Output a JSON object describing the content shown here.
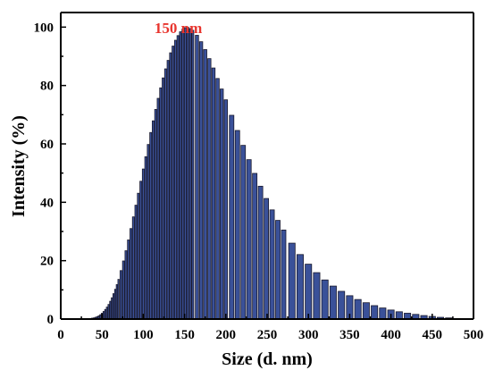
{
  "chart_data": {
    "type": "bar",
    "xlabel": "Size (d. nm)",
    "ylabel": "Intensity (%)",
    "xlim": [
      0,
      500
    ],
    "ylim": [
      0,
      105
    ],
    "x_ticks": [
      0,
      50,
      100,
      150,
      200,
      250,
      300,
      350,
      400,
      450,
      500
    ],
    "y_ticks": [
      0,
      20,
      40,
      60,
      80,
      100
    ],
    "grid": false,
    "annotation": {
      "text": "150 nm",
      "x": 150,
      "color": "#e8352e"
    },
    "bar_color": "#3a5199",
    "x": [
      28,
      32,
      36,
      38,
      40,
      42,
      44,
      46,
      48,
      50,
      52,
      54,
      56,
      58,
      60,
      62,
      64,
      66,
      68,
      70,
      73,
      76,
      79,
      82,
      85,
      88,
      91,
      94,
      97,
      100,
      103,
      106,
      109,
      112,
      115,
      118,
      121,
      124,
      127,
      130,
      133,
      136,
      139,
      142,
      145,
      148,
      151,
      154,
      157,
      160,
      165,
      170,
      175,
      180,
      185,
      190,
      195,
      200,
      207,
      214,
      221,
      228,
      235,
      242,
      249,
      256,
      263,
      270,
      280,
      290,
      300,
      310,
      320,
      330,
      340,
      350,
      360,
      370,
      380,
      390,
      400,
      410,
      420,
      430,
      440,
      450,
      460,
      470,
      480
    ],
    "values": [
      0.05,
      0.1,
      0.2,
      0.3,
      0.4,
      0.6,
      0.8,
      1.1,
      1.5,
      2.0,
      2.6,
      3.3,
      4.1,
      5.0,
      6.1,
      7.3,
      8.7,
      10.2,
      11.8,
      13.6,
      16.6,
      19.9,
      23.4,
      27.1,
      31.0,
      35.0,
      39.0,
      43.1,
      47.2,
      51.4,
      55.6,
      59.8,
      63.9,
      67.9,
      71.8,
      75.6,
      79.2,
      82.6,
      85.7,
      88.6,
      91.2,
      93.5,
      95.5,
      97.1,
      98.4,
      99.3,
      99.8,
      99.9,
      99.5,
      98.9,
      97.2,
      95.0,
      92.3,
      89.2,
      86.0,
      82.4,
      78.8,
      75.1,
      69.8,
      64.6,
      59.5,
      54.6,
      49.9,
      45.5,
      41.3,
      37.4,
      33.8,
      30.5,
      26.0,
      22.1,
      18.8,
      15.9,
      13.4,
      11.3,
      9.5,
      8.0,
      6.7,
      5.6,
      4.6,
      3.8,
      3.1,
      2.5,
      2.0,
      1.6,
      1.2,
      0.9,
      0.6,
      0.4,
      0.2
    ]
  }
}
